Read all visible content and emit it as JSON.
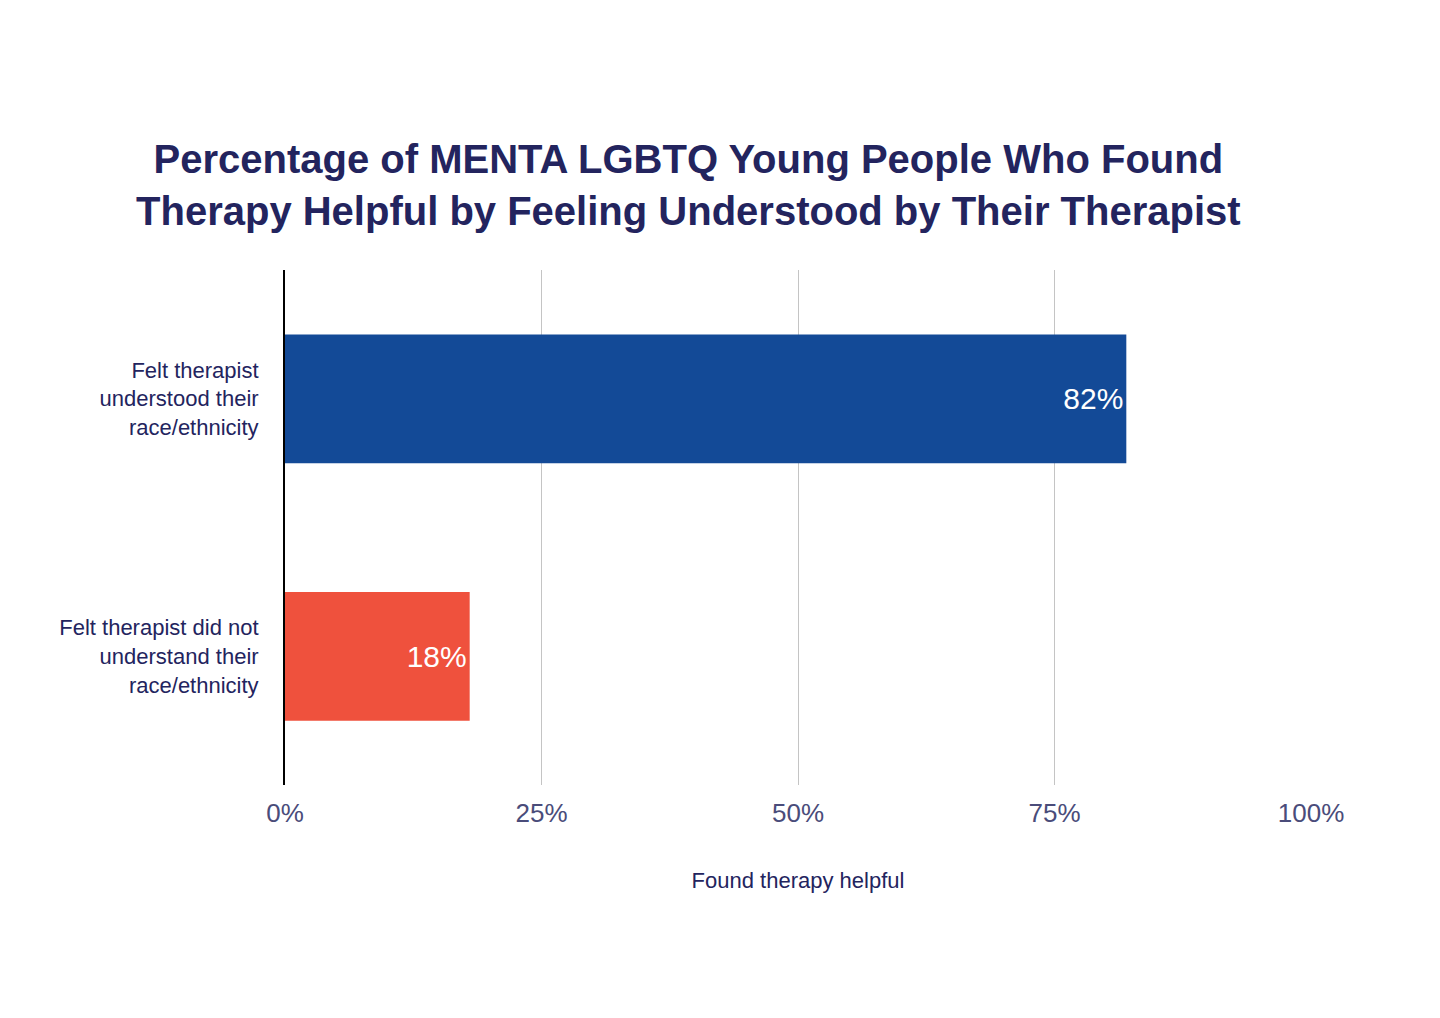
{
  "chart_data": {
    "type": "bar",
    "orientation": "horizontal",
    "title": "Percentage of MENTA LGBTQ Young People Who Found\nTherapy Helpful by Feeling Understood by Their Therapist",
    "xlabel": "Found therapy helpful",
    "categories": [
      "Felt therapist\nunderstood their\nrace/ethnicity",
      "Felt therapist did not\nunderstand their\nrace/ethnicity"
    ],
    "values": [
      82,
      18
    ],
    "value_labels": [
      "82%",
      "18%"
    ],
    "colors": [
      "#134a97",
      "#ef513d"
    ],
    "data_labels": true,
    "xlim": [
      0,
      100
    ],
    "xticks": [
      {
        "value": 0,
        "label": "0%"
      },
      {
        "value": 25,
        "label": "25%"
      },
      {
        "value": 50,
        "label": "50%"
      },
      {
        "value": 75,
        "label": "75%"
      },
      {
        "value": 100,
        "label": "100%"
      }
    ],
    "grid": true
  }
}
